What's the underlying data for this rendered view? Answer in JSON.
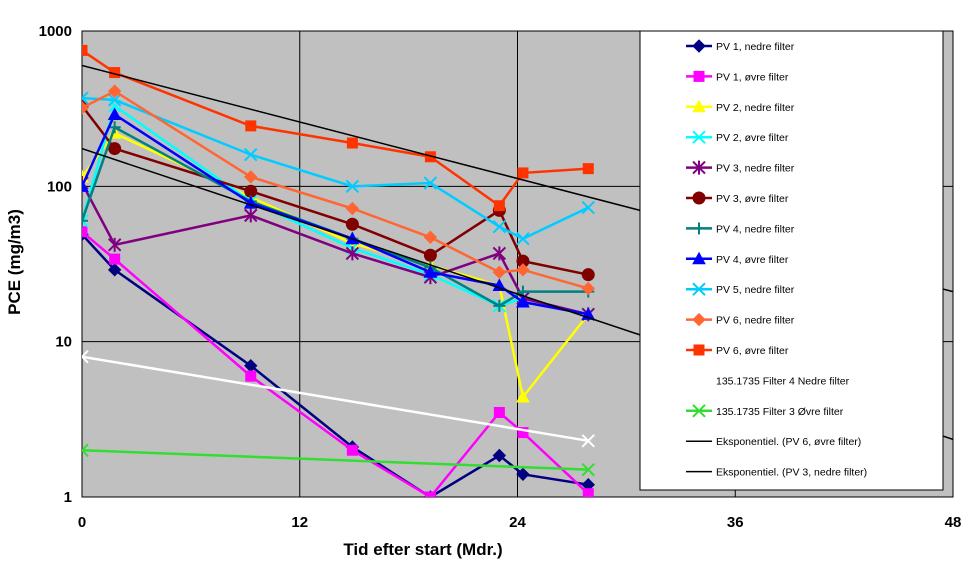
{
  "chart_data": {
    "type": "line",
    "xlabel": "Tid efter start (Mdr.)",
    "ylabel": "PCE (mg/m3)",
    "xlim": [
      0,
      48
    ],
    "ylim": [
      1,
      1000
    ],
    "y_scale": "log",
    "x_ticks": [
      "0",
      "12",
      "24",
      "36",
      "48"
    ],
    "y_ticks": [
      "1",
      "10",
      "100",
      "1000"
    ],
    "grid": true,
    "plot_background": "#c0c0c0",
    "legend_position": "right",
    "series": [
      {
        "name": "PV 1, nedre filter",
        "color": "#000080",
        "marker": "diamond",
        "x": [
          0,
          1.8,
          9.3,
          14.9,
          19.2,
          23,
          24.3,
          27.9
        ],
        "y": [
          49,
          29,
          7,
          2.1,
          1.0,
          1.85,
          1.4,
          1.2
        ]
      },
      {
        "name": "PV 1, øvre filter",
        "color": "#ff00ff",
        "marker": "square",
        "x": [
          0,
          1.8,
          9.3,
          14.9,
          19.2,
          23,
          24.3,
          27.9
        ],
        "y": [
          51,
          34,
          6,
          2.0,
          1.0,
          3.5,
          2.6,
          1.05
        ]
      },
      {
        "name": "PV 2, nedre filter",
        "color": "#ffff00",
        "marker": "triangle",
        "x": [
          0,
          1.8,
          9.3,
          14.9,
          19.2,
          23,
          24.3,
          27.9
        ],
        "y": [
          115,
          220,
          85,
          43,
          31,
          23,
          4.4,
          15
        ]
      },
      {
        "name": "PV 2, øvre filter",
        "color": "#00ffff",
        "marker": "x",
        "x": [
          0,
          1.8,
          9.3,
          14.9,
          19.2,
          23,
          24.3,
          27.9
        ],
        "y": [
          60,
          330,
          80,
          40,
          27,
          17,
          19,
          15
        ]
      },
      {
        "name": "PV 3, nedre filter",
        "color": "#800080",
        "marker": "star",
        "x": [
          0,
          1.8,
          9.3,
          14.9,
          19.2,
          23,
          24.3,
          27.9
        ],
        "y": [
          105,
          42,
          65,
          37,
          26,
          37,
          19,
          15
        ]
      },
      {
        "name": "PV 3, øvre filter",
        "color": "#800000",
        "marker": "circle",
        "x": [
          0,
          1.8,
          9.3,
          14.9,
          19.2,
          23,
          24.3,
          27.9
        ],
        "y": [
          330,
          175,
          93,
          57,
          36,
          70,
          33,
          27
        ]
      },
      {
        "name": "PV 4, nedre filter",
        "color": "#008080",
        "marker": "plus",
        "x": [
          0,
          1.8,
          9.3,
          14.9,
          19.2,
          23,
          24.3,
          27.9
        ],
        "y": [
          60,
          240,
          80,
          46,
          30,
          17,
          21,
          21
        ]
      },
      {
        "name": "PV 4, øvre filter",
        "color": "#0000ff",
        "marker": "triangle",
        "x": [
          0,
          1.8,
          9.3,
          14.9,
          19.2,
          23,
          24.3,
          27.9
        ],
        "y": [
          100,
          290,
          78,
          46,
          28,
          23,
          18,
          15
        ]
      },
      {
        "name": "PV 5, nedre filter",
        "color": "#00ccff",
        "marker": "x",
        "x": [
          0,
          1.8,
          9.3,
          14.9,
          19.2,
          23,
          24.3,
          27.9
        ],
        "y": [
          370,
          360,
          160,
          100,
          105,
          55,
          46,
          73
        ]
      },
      {
        "name": "PV 6, nedre filter",
        "color": "#ff6633",
        "marker": "diamond",
        "x": [
          0,
          1.8,
          9.3,
          14.9,
          19.2,
          23,
          24.3,
          27.9
        ],
        "y": [
          320,
          410,
          115,
          72,
          47,
          28,
          29,
          22
        ]
      },
      {
        "name": "PV 6, øvre filter",
        "color": "#ff3300",
        "marker": "square",
        "x": [
          0,
          1.8,
          9.3,
          14.9,
          19.2,
          23,
          24.3,
          27.9
        ],
        "y": [
          750,
          540,
          245,
          190,
          155,
          75,
          122,
          130
        ]
      },
      {
        "name": "135.1735 Filter 4 Nedre filter",
        "color": "#ffffff",
        "marker": "x",
        "x": [
          0,
          27.9
        ],
        "y": [
          8,
          2.3
        ]
      },
      {
        "name": "135.1735 Filter 3 Øvre filter",
        "color": "#33dd33",
        "marker": "x",
        "x": [
          0,
          27.9
        ],
        "y": [
          2.0,
          1.5
        ]
      },
      {
        "name": "Eksponentiel. (PV 6, øvre filter)",
        "color": "#000000",
        "marker": "none",
        "trendline": true,
        "x": [
          0,
          48
        ],
        "y": [
          600,
          21
        ]
      },
      {
        "name": "Eksponentiel. (PV 3, nedre filter)",
        "color": "#000000",
        "marker": "none",
        "trendline": true,
        "x": [
          0,
          48
        ],
        "y": [
          175,
          2.35
        ]
      }
    ]
  }
}
